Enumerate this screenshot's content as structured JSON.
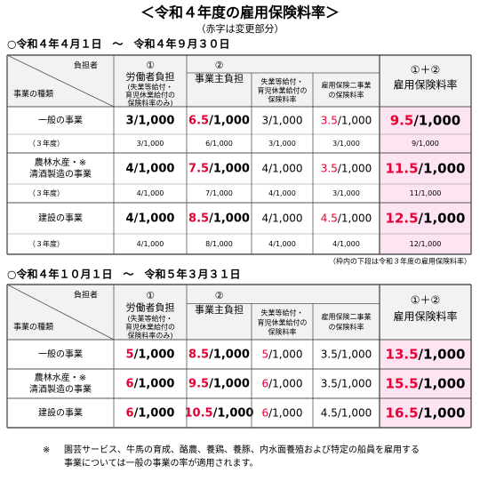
{
  "title": "＜令和４年度の雇用保険料率＞",
  "subtitle": "（赤字は変更部分）",
  "sections": [
    {
      "heading": "○令和４年４月１日　～　令和４年９月３０日",
      "header": {
        "burden": "負担者",
        "kind": "事業の種類",
        "cols": [
          [
            "①",
            "労働者負担",
            "(失業等給付・",
            "育児休業給付の",
            "保険料率のみ)"
          ],
          [
            "②",
            "事業主負担"
          ],
          [
            "失業等給付・",
            "育児休業給付の",
            "保険料率"
          ],
          [
            "雇用保険二事業",
            "の保険料率"
          ],
          [
            "①＋②",
            "雇用保険料率"
          ]
        ]
      },
      "rows": [
        {
          "name": [
            "一般の事業"
          ],
          "cells": [
            {
              "n": "3",
              "d": "/1,000",
              "red": false
            },
            {
              "n": "6.5",
              "d": "/1,000",
              "red": true
            },
            {
              "n": "3",
              "d": "/1,000",
              "red": false
            },
            {
              "n": "3.5",
              "d": "/1,000",
              "red": true
            },
            {
              "n": "9.5",
              "d": "/1,000",
              "red": true
            }
          ],
          "prev": {
            "name": "（３年度）",
            "cells": [
              "3/1,000",
              "6/1,000",
              "3/1,000",
              "3/1,000",
              "9/1,000"
            ]
          }
        },
        {
          "name": [
            "農林水産・※",
            "清酒製造の事業"
          ],
          "cells": [
            {
              "n": "4",
              "d": "/1,000",
              "red": false
            },
            {
              "n": "7.5",
              "d": "/1,000",
              "red": true
            },
            {
              "n": "4",
              "d": "/1,000",
              "red": false
            },
            {
              "n": "3.5",
              "d": "/1,000",
              "red": true
            },
            {
              "n": "11.5",
              "d": "/1,000",
              "red": true
            }
          ],
          "prev": {
            "name": "（３年度）",
            "cells": [
              "4/1,000",
              "7/1,000",
              "4/1,000",
              "3/1,000",
              "11/1,000"
            ]
          }
        },
        {
          "name": [
            "建設の事業"
          ],
          "cells": [
            {
              "n": "4",
              "d": "/1,000",
              "red": false
            },
            {
              "n": "8.5",
              "d": "/1,000",
              "red": true
            },
            {
              "n": "4",
              "d": "/1,000",
              "red": false
            },
            {
              "n": "4.5",
              "d": "/1,000",
              "red": true
            },
            {
              "n": "12.5",
              "d": "/1,000",
              "red": true
            }
          ],
          "prev": {
            "name": "（３年度）",
            "cells": [
              "4/1,000",
              "8/1,000",
              "4/1,000",
              "4/1,000",
              "12/1,000"
            ]
          }
        }
      ],
      "note": "（枠内の下段は令和３年度の雇用保険料率）"
    },
    {
      "heading": "○令和４年１０月１日　～　令和５年３月３１日",
      "header": {
        "burden": "負担者",
        "kind": "事業の種類",
        "cols": [
          [
            "①",
            "労働者負担",
            "(失業等給付・",
            "育児休業給付の",
            "保険料率のみ)"
          ],
          [
            "②",
            "事業主負担"
          ],
          [
            "失業等給付・",
            "育児休業給付の",
            "保険料率"
          ],
          [
            "雇用保険二事業",
            "の保険料率"
          ],
          [
            "①＋②",
            "雇用保険料率"
          ]
        ]
      },
      "rows": [
        {
          "name": [
            "一般の事業"
          ],
          "cells": [
            {
              "n": "5",
              "d": "/1,000",
              "red": true
            },
            {
              "n": "8.5",
              "d": "/1,000",
              "red": true
            },
            {
              "n": "5",
              "d": "/1,000",
              "red": true
            },
            {
              "n": "3.5",
              "d": "/1,000",
              "red": false
            },
            {
              "n": "13.5",
              "d": "/1,000",
              "red": true
            }
          ]
        },
        {
          "name": [
            "農林水産・※",
            "清酒製造の事業"
          ],
          "cells": [
            {
              "n": "6",
              "d": "/1,000",
              "red": true
            },
            {
              "n": "9.5",
              "d": "/1,000",
              "red": true
            },
            {
              "n": "6",
              "d": "/1,000",
              "red": true
            },
            {
              "n": "3.5",
              "d": "/1,000",
              "red": false
            },
            {
              "n": "15.5",
              "d": "/1,000",
              "red": true
            }
          ]
        },
        {
          "name": [
            "建設の事業"
          ],
          "cells": [
            {
              "n": "6",
              "d": "/1,000",
              "red": true
            },
            {
              "n": "10.5",
              "d": "/1,000",
              "red": true
            },
            {
              "n": "6",
              "d": "/1,000",
              "red": true
            },
            {
              "n": "4.5",
              "d": "/1,000",
              "red": false
            },
            {
              "n": "16.5",
              "d": "/1,000",
              "red": true
            }
          ]
        }
      ]
    }
  ],
  "footnote": {
    "mark": "※",
    "lines": [
      "園芸サービス、牛馬の育成、酪農、養鶏、養豚、内水面養殖および特定の船員を雇用する",
      "事業については一般の事業の率が適用されます。"
    ]
  }
}
